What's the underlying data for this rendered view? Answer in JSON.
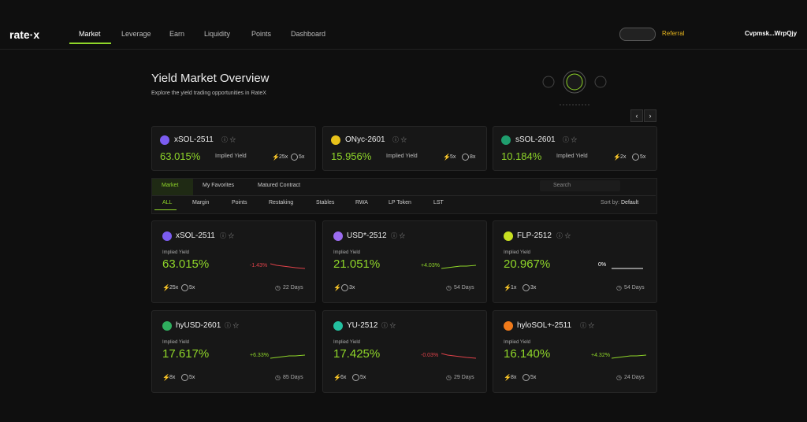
{
  "header": {
    "logo": "rate·x",
    "nav": [
      "Market",
      "Leverage",
      "Earn",
      "Liquidity",
      "Points",
      "Dashboard"
    ],
    "referral": "Referral",
    "wallet": "Cvpmsk...WrpQjy"
  },
  "hero": {
    "title": "Yield Market Overview",
    "subtitle": "Explore the yield trading opportunities in RateX"
  },
  "featured": [
    {
      "name": "xSOL-2511",
      "yield": "63.015%",
      "yield_label": "Implied Yield",
      "lev1": "25x",
      "lev2": "5x",
      "icon_color": "#7b5cf0"
    },
    {
      "name": "ONyc-2601",
      "yield": "15.956%",
      "yield_label": "Implied Yield",
      "lev1": "5x",
      "lev2": "8x",
      "icon_color": "#e8c21a"
    },
    {
      "name": "sSOL-2601",
      "yield": "10.184%",
      "yield_label": "Implied Yield",
      "lev1": "2x",
      "lev2": "5x",
      "icon_color": "#1f9e6e"
    }
  ],
  "tabs": [
    "Market",
    "My Favorites",
    "Matured Contract"
  ],
  "search": "Search",
  "filters": [
    "ALL",
    "Margin",
    "Points",
    "Restaking",
    "Stables",
    "RWA",
    "LP Token",
    "LST"
  ],
  "sort_label": "Sort by:",
  "sort_value": "Default",
  "markets": [
    {
      "name": "xSOL-2511",
      "yield_label": "Implied Yield",
      "yield": "63.015%",
      "change": "-1.43%",
      "lev1": "25x",
      "lev2": "5x",
      "days": "22 Days",
      "icon_color": "#7b5cf0"
    },
    {
      "name": "USD*-2512",
      "yield_label": "Implied Yield",
      "yield": "21.051%",
      "change": "+4.03%",
      "lev2": "3x",
      "days": "54 Days",
      "icon_color": "#9b6cf0"
    },
    {
      "name": "FLP-2512",
      "yield_label": "Implied Yield",
      "yield": "20.967%",
      "change": "0%",
      "lev1": "1x",
      "lev2": "3x",
      "days": "54 Days",
      "icon_color": "#c8e021"
    },
    {
      "name": "hyUSD-2601",
      "yield_label": "Implied Yield",
      "yield": "17.617%",
      "change": "+6.33%",
      "lev1": "8x",
      "lev2": "5x",
      "days": "85 Days",
      "icon_color": "#2fae5e"
    },
    {
      "name": "YU-2512",
      "yield_label": "Implied Yield",
      "yield": "17.425%",
      "change": "-0.03%",
      "lev1": "6x",
      "lev2": "5x",
      "days": "29 Days",
      "icon_color": "#23c0a0"
    },
    {
      "name": "hyloSOL+-2511",
      "yield_label": "Implied Yield",
      "yield": "16.140%",
      "change": "+4.32%",
      "lev1": "8x",
      "lev2": "5x",
      "days": "24 Days",
      "icon_color": "#f07a1a"
    }
  ]
}
